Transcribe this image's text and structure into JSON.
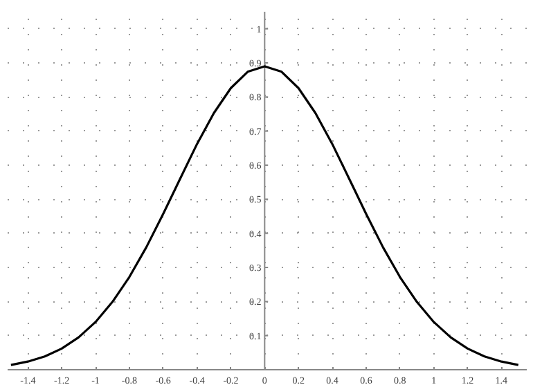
{
  "chart_data": {
    "type": "line",
    "x": [
      -1.5,
      -1.4,
      -1.3,
      -1.2,
      -1.1,
      -1.0,
      -0.9,
      -0.8,
      -0.7,
      -0.6,
      -0.5,
      -0.4,
      -0.3,
      -0.2,
      -0.1,
      0,
      0.1,
      0.2,
      0.3,
      0.4,
      0.5,
      0.6,
      0.7,
      0.8,
      0.9,
      1.0,
      1.1,
      1.2,
      1.3,
      1.4,
      1.5
    ],
    "series": [
      {
        "color": "#000000",
        "values": [
          0.014,
          0.024,
          0.039,
          0.062,
          0.095,
          0.14,
          0.199,
          0.272,
          0.359,
          0.457,
          0.56,
          0.662,
          0.753,
          0.826,
          0.874,
          0.89,
          0.874,
          0.826,
          0.753,
          0.662,
          0.56,
          0.457,
          0.359,
          0.272,
          0.199,
          0.14,
          0.095,
          0.062,
          0.039,
          0.024,
          0.014
        ]
      }
    ],
    "xlim": [
      -1.52,
      1.55
    ],
    "ylim": [
      0,
      1.05
    ],
    "xticks": [
      -1.4,
      -1.2,
      {
        "value": -1,
        "label": "-1"
      },
      -0.8,
      -0.6,
      -0.4,
      -0.2,
      {
        "value": 0,
        "label": "0"
      },
      0.2,
      0.4,
      0.6,
      0.8,
      {
        "value": 1,
        "label": "1"
      },
      1.2,
      1.4
    ],
    "yticks": [
      0.1,
      0.2,
      0.3,
      0.4,
      0.5,
      0.6,
      0.7,
      0.8,
      0.9,
      {
        "value": 1,
        "label": "1"
      }
    ],
    "grid": true,
    "line_style": "solid",
    "marker": "none"
  }
}
